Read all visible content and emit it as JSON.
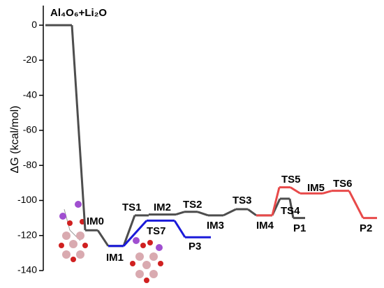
{
  "chart_data": {
    "type": "energy-profile",
    "ylabel": "ΔG (kcal/mol)",
    "ylim": [
      -140,
      8
    ],
    "yticks": [
      0,
      -20,
      -40,
      -60,
      -80,
      -100,
      -120,
      -140
    ],
    "categories": [
      "Al₄O₆+Li₂O",
      "IM0",
      "IM1",
      "TS1",
      "IM2",
      "TS2",
      "IM3",
      "TS3",
      "IM4",
      "TS4",
      "P1",
      "TS7",
      "P3",
      "TS5",
      "IM5",
      "TS6",
      "P2"
    ],
    "series": [
      {
        "color": "#4d4d4d",
        "values": [
          0,
          -117,
          -126,
          -108.5,
          -108,
          -106.5,
          -108.5,
          -105,
          -108.5,
          -99,
          -110,
          null,
          null,
          null,
          null,
          null,
          null
        ]
      },
      {
        "color": "#1a1ad9",
        "values": [
          null,
          null,
          -126,
          null,
          null,
          null,
          null,
          null,
          null,
          null,
          null,
          -111.5,
          -121,
          null,
          null,
          null,
          null
        ]
      },
      {
        "color": "#e84a4a",
        "values": [
          null,
          null,
          null,
          null,
          null,
          null,
          null,
          null,
          -108.5,
          null,
          null,
          null,
          null,
          -92.5,
          -96,
          -94.5,
          -110
        ]
      }
    ]
  }
}
